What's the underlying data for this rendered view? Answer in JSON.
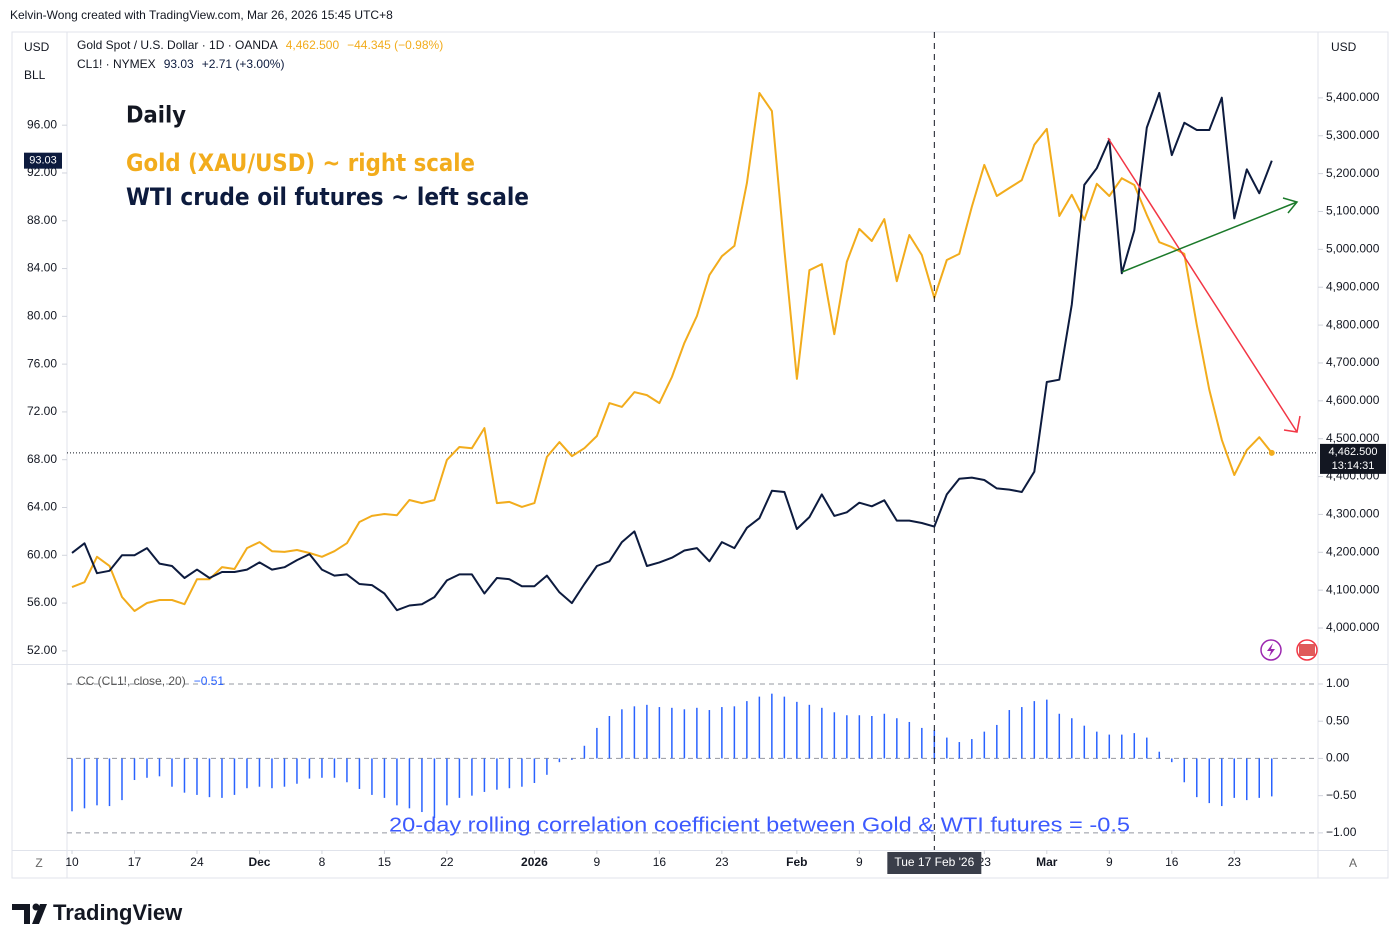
{
  "header": "Kelvin-Wong created with TradingView.com, Mar 26, 2026 15:45 UTC+8",
  "brand": "TradingView",
  "chart_data": [
    {
      "type": "line",
      "left_axis_labels": [
        "USD",
        "BLL"
      ],
      "right_axis_label": "USD",
      "annotations": [
        "Daily",
        "Gold (XAU/USD) ~ right scale",
        "WTI crude oil futures ~ left scale"
      ],
      "x": [
        0,
        1,
        2,
        3,
        4,
        5,
        6,
        7,
        8,
        9,
        10,
        11,
        12,
        13,
        14,
        15,
        16,
        17,
        18,
        19,
        20,
        21,
        22,
        23,
        24,
        25,
        26,
        27,
        28,
        29,
        30,
        31,
        32,
        33,
        34,
        35,
        36,
        37,
        38,
        39,
        40,
        41,
        42,
        43,
        44,
        45,
        46,
        47,
        48,
        49,
        50,
        51,
        52,
        53,
        54,
        55,
        56,
        57,
        58,
        59,
        60,
        61,
        62,
        63,
        64,
        65,
        66,
        67,
        68,
        69,
        70,
        71,
        72,
        73,
        74,
        75,
        76,
        77,
        78,
        79,
        80,
        81,
        82,
        83,
        84,
        85,
        86,
        87,
        88,
        89,
        90,
        91,
        92,
        93,
        94,
        95,
        96
      ],
      "xlim": [
        -0.4,
        99.7
      ],
      "xticks": [
        {
          "value": 0,
          "label": "10"
        },
        {
          "value": 5,
          "label": "17"
        },
        {
          "value": 10,
          "label": "24"
        },
        {
          "value": 15,
          "label": "Dec"
        },
        {
          "value": 20,
          "label": "8"
        },
        {
          "value": 25,
          "label": "15"
        },
        {
          "value": 30,
          "label": "22"
        },
        {
          "value": 37,
          "label": "2026"
        },
        {
          "value": 42,
          "label": "9"
        },
        {
          "value": 47,
          "label": "16"
        },
        {
          "value": 52,
          "label": "23"
        },
        {
          "value": 58,
          "label": "Feb"
        },
        {
          "value": 63,
          "label": "9"
        },
        {
          "value": 73,
          "label": "23"
        },
        {
          "value": 78,
          "label": "Mar"
        },
        {
          "value": 83,
          "label": "9"
        },
        {
          "value": 88,
          "label": "16"
        },
        {
          "value": 93,
          "label": "23"
        }
      ],
      "crosshair": {
        "value": 69,
        "label": "Tue 17 Feb '26"
      },
      "ylim": [
        50.9,
        103.8
      ],
      "yticks": [
        {
          "value": 52,
          "label": "52.00"
        },
        {
          "value": 56,
          "label": "56.00"
        },
        {
          "value": 60,
          "label": "60.00"
        },
        {
          "value": 64,
          "label": "64.00"
        },
        {
          "value": 68,
          "label": "68.00"
        },
        {
          "value": 72,
          "label": "72.00"
        },
        {
          "value": 76,
          "label": "76.00"
        },
        {
          "value": 80,
          "label": "80.00"
        },
        {
          "value": 84,
          "label": "84.00"
        },
        {
          "value": 88,
          "label": "88.00"
        },
        {
          "value": 92,
          "label": "92.00"
        },
        {
          "value": 96,
          "label": "96.00"
        }
      ],
      "y2lim": [
        3905,
        5574
      ],
      "y2ticks": [
        {
          "value": 4000,
          "label": "4,000.000"
        },
        {
          "value": 4100,
          "label": "4,100.000"
        },
        {
          "value": 4200,
          "label": "4,200.000"
        },
        {
          "value": 4300,
          "label": "4,300.000"
        },
        {
          "value": 4400,
          "label": "4,400.000"
        },
        {
          "value": 4500,
          "label": "4,500.000"
        },
        {
          "value": 4600,
          "label": "4,600.000"
        },
        {
          "value": 4700,
          "label": "4,700.000"
        },
        {
          "value": 4800,
          "label": "4,800.000"
        },
        {
          "value": 4900,
          "label": "4,900.000"
        },
        {
          "value": 5000,
          "label": "5,000.000"
        },
        {
          "value": 5100,
          "label": "5,100.000"
        },
        {
          "value": 5200,
          "label": "5,200.000"
        },
        {
          "value": 5300,
          "label": "5,300.000"
        },
        {
          "value": 5400,
          "label": "5,400.000"
        }
      ],
      "series": [
        {
          "name": "Gold Spot / U.S. Dollar · 1D · OANDA",
          "axis": "y2",
          "color": "#f2ac1c",
          "last_label": "4,462.500",
          "change": "−44.345 (−0.98%)",
          "countdown": "13:14:31",
          "values": [
            4108,
            4121,
            4188,
            4164,
            4082,
            4045,
            4066,
            4074,
            4074,
            4063,
            4129,
            4129,
            4161,
            4156,
            4211,
            4227,
            4203,
            4201,
            4206,
            4198,
            4188,
            4203,
            4224,
            4280,
            4296,
            4301,
            4298,
            4338,
            4330,
            4338,
            4444,
            4478,
            4475,
            4528,
            4330,
            4333,
            4320,
            4330,
            4452,
            4491,
            4454,
            4475,
            4507,
            4594,
            4584,
            4623,
            4615,
            4594,
            4663,
            4753,
            4824,
            4932,
            4982,
            5009,
            5175,
            5413,
            5365,
            4998,
            4658,
            4945,
            4961,
            4776,
            4967,
            5054,
            5022,
            5080,
            4916,
            5038,
            4985,
            4872,
            4972,
            4988,
            5112,
            5223,
            5141,
            5162,
            5183,
            5276,
            5318,
            5088,
            5144,
            5078,
            5173,
            5141,
            5188,
            5170,
            5091,
            5019,
            5006,
            4988,
            4800,
            4629,
            4497,
            4404,
            4470,
            4504,
            4462.5
          ]
        },
        {
          "name": "CL1! · NYMEX",
          "axis": "y",
          "color": "#0d1b3e",
          "last_label": "93.03",
          "change": "+2.71 (+3.00%)",
          "values": [
            60.2,
            61.0,
            58.5,
            58.7,
            60.0,
            60.0,
            60.6,
            59.3,
            59.1,
            58.1,
            58.8,
            58.1,
            58.6,
            58.6,
            58.8,
            59.4,
            58.8,
            59.0,
            59.6,
            60.1,
            58.8,
            58.3,
            58.4,
            57.6,
            57.5,
            56.8,
            55.4,
            55.8,
            55.9,
            56.5,
            57.9,
            58.4,
            58.4,
            56.8,
            58.1,
            58.0,
            57.4,
            57.4,
            58.3,
            56.9,
            56.0,
            57.6,
            59.1,
            59.5,
            61.1,
            62.0,
            59.1,
            59.4,
            59.8,
            60.4,
            60.6,
            59.5,
            61.1,
            60.6,
            62.3,
            63.1,
            65.4,
            65.3,
            62.2,
            63.2,
            65.1,
            63.3,
            63.6,
            64.4,
            64.1,
            64.6,
            62.9,
            62.9,
            62.7,
            62.4,
            65.1,
            66.4,
            66.5,
            66.3,
            65.6,
            65.5,
            65.3,
            67.0,
            74.5,
            74.7,
            81.0,
            91.0,
            92.4,
            94.8,
            83.6,
            87.2,
            95.8,
            98.7,
            93.5,
            96.2,
            95.6,
            95.6,
            98.3,
            88.2,
            92.3,
            90.3,
            93.03
          ]
        }
      ]
    },
    {
      "type": "bar",
      "legend": {
        "name": "CC (CL1!, close, 20)",
        "value": "−0.51"
      },
      "annotation": "20-day rolling correlation coefficient between Gold & WTI futures = -0.5",
      "color": "#2962ff",
      "ylim": [
        -1.23,
        1.255
      ],
      "yticks": [
        {
          "value": 1,
          "label": "1.00"
        },
        {
          "value": 0.5,
          "label": "0.50"
        },
        {
          "value": 0,
          "label": "0.00"
        },
        {
          "value": -0.5,
          "label": "−0.50"
        },
        {
          "value": -1,
          "label": "−1.00"
        }
      ],
      "hlines": [
        1,
        0,
        -1
      ],
      "values": [
        -0.71,
        -0.67,
        -0.63,
        -0.64,
        -0.56,
        -0.29,
        -0.26,
        -0.24,
        -0.38,
        -0.46,
        -0.49,
        -0.52,
        -0.53,
        -0.49,
        -0.4,
        -0.38,
        -0.4,
        -0.38,
        -0.34,
        -0.27,
        -0.26,
        -0.26,
        -0.32,
        -0.41,
        -0.49,
        -0.53,
        -0.63,
        -0.67,
        -0.72,
        -0.8,
        -0.63,
        -0.53,
        -0.5,
        -0.45,
        -0.42,
        -0.4,
        -0.38,
        -0.33,
        -0.22,
        -0.05,
        -0.02,
        0.17,
        0.41,
        0.57,
        0.66,
        0.7,
        0.72,
        0.69,
        0.68,
        0.66,
        0.68,
        0.65,
        0.69,
        0.7,
        0.77,
        0.83,
        0.87,
        0.83,
        0.76,
        0.72,
        0.68,
        0.62,
        0.58,
        0.58,
        0.57,
        0.6,
        0.54,
        0.49,
        0.41,
        0.38,
        0.28,
        0.22,
        0.26,
        0.36,
        0.45,
        0.65,
        0.69,
        0.77,
        0.79,
        0.6,
        0.54,
        0.44,
        0.36,
        0.32,
        0.32,
        0.34,
        0.28,
        0.09,
        -0.05,
        -0.32,
        -0.52,
        -0.6,
        -0.64,
        -0.53,
        -0.56,
        -0.53,
        -0.51
      ]
    }
  ]
}
